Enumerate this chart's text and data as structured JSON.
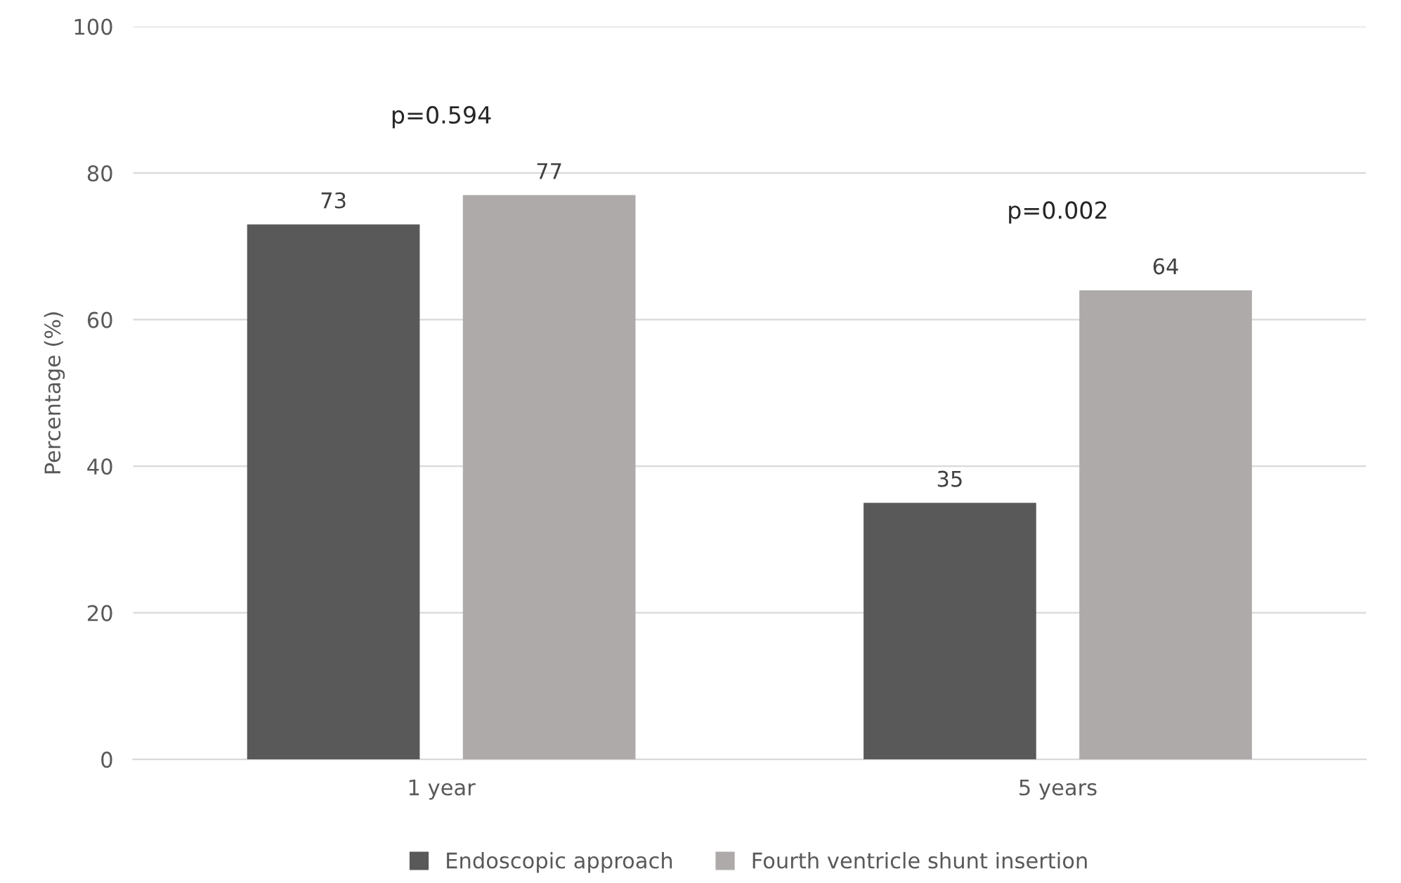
{
  "chart_data": {
    "type": "bar",
    "ylabel": "Percentage (%)",
    "categories": [
      "1 year",
      "5 years"
    ],
    "series": [
      {
        "name": "Endoscopic approach",
        "color": "#595959",
        "values": [
          73,
          35
        ]
      },
      {
        "name": "Fourth ventricle shunt insertion",
        "color": "#aeaaaa",
        "values": [
          77,
          64
        ]
      }
    ],
    "ylim": [
      0,
      100
    ],
    "yticks": [
      0,
      20,
      40,
      60,
      80,
      100
    ],
    "grid": "y",
    "legend": "bottom",
    "data_labels": true,
    "annotations": [
      "p=0.594",
      "p=0.002"
    ]
  }
}
